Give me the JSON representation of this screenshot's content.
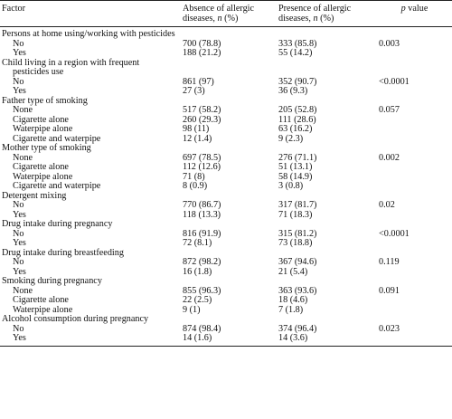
{
  "header": {
    "factor": "Factor",
    "absence_main": "Absence of allergic",
    "absence_sub_prefix": "diseases, ",
    "absence_sub_n": "n",
    "absence_sub_suffix": " (%)",
    "presence_main": "Presence of allergic",
    "presence_sub_prefix": "diseases, ",
    "presence_sub_n": "n",
    "presence_sub_suffix": " (%)",
    "p_italic": "p",
    "p_suffix": " value"
  },
  "groups": [
    {
      "factor": "Persons at home using/working with pesticides",
      "rows": [
        {
          "label": "No",
          "absence": "700 (78.8)",
          "presence": "333 (85.8)",
          "p": "0.003"
        },
        {
          "label": "Yes",
          "absence": "188 (21.2)",
          "presence": "55 (14.2)",
          "p": ""
        }
      ]
    },
    {
      "factor": "Child living in a region with frequent",
      "factor_cont": "pesticides use",
      "rows": [
        {
          "label": "No",
          "absence": "861 (97)",
          "presence": "352 (90.7)",
          "p": "<0.0001"
        },
        {
          "label": "Yes",
          "absence": "27 (3)",
          "presence": "36 (9.3)",
          "p": ""
        }
      ]
    },
    {
      "factor": "Father type of smoking",
      "rows": [
        {
          "label": "None",
          "absence": "517 (58.2)",
          "presence": "205 (52.8)",
          "p": "0.057"
        },
        {
          "label": "Cigarette alone",
          "absence": "260 (29.3)",
          "presence": "111 (28.6)",
          "p": ""
        },
        {
          "label": "Waterpipe alone",
          "absence": "98 (11)",
          "presence": "63 (16.2)",
          "p": ""
        },
        {
          "label": "Cigarette and waterpipe",
          "absence": "12 (1.4)",
          "presence": "9 (2.3)",
          "p": ""
        }
      ]
    },
    {
      "factor": "Mother type of smoking",
      "rows": [
        {
          "label": "None",
          "absence": "697 (78.5)",
          "presence": "276 (71.1)",
          "p": "0.002"
        },
        {
          "label": "Cigarette alone",
          "absence": "112 (12.6)",
          "presence": "51 (13.1)",
          "p": ""
        },
        {
          "label": "Waterpipe alone",
          "absence": "71 (8)",
          "presence": "58 (14.9)",
          "p": ""
        },
        {
          "label": "Cigarette and waterpipe",
          "absence": "8 (0.9)",
          "presence": "3 (0.8)",
          "p": ""
        }
      ]
    },
    {
      "factor": "Detergent mixing",
      "rows": [
        {
          "label": "No",
          "absence": "770 (86.7)",
          "presence": "317 (81.7)",
          "p": "0.02"
        },
        {
          "label": "Yes",
          "absence": "118 (13.3)",
          "presence": "71 (18.3)",
          "p": ""
        }
      ]
    },
    {
      "factor": "Drug intake during pregnancy",
      "rows": [
        {
          "label": "No",
          "absence": "816 (91.9)",
          "presence": "315 (81.2)",
          "p": "<0.0001"
        },
        {
          "label": "Yes",
          "absence": "72 (8.1)",
          "presence": "73 (18.8)",
          "p": ""
        }
      ]
    },
    {
      "factor": "Drug intake during breastfeeding",
      "rows": [
        {
          "label": "No",
          "absence": "872 (98.2)",
          "presence": "367 (94.6)",
          "p": "0.119"
        },
        {
          "label": "Yes",
          "absence": "16 (1.8)",
          "presence": "21 (5.4)",
          "p": ""
        }
      ]
    },
    {
      "factor": "Smoking during pregnancy",
      "rows": [
        {
          "label": "None",
          "absence": "855 (96.3)",
          "presence": "363 (93.6)",
          "p": "0.091"
        },
        {
          "label": "Cigarette alone",
          "absence": "22 (2.5)",
          "presence": "18 (4.6)",
          "p": ""
        },
        {
          "label": "Waterpipe alone",
          "absence": "9 (1)",
          "presence": "7 (1.8)",
          "p": ""
        }
      ]
    },
    {
      "factor": "Alcohol consumption during pregnancy",
      "rows": [
        {
          "label": "No",
          "absence": "874 (98.4)",
          "presence": "374 (96.4)",
          "p": "0.023"
        },
        {
          "label": "Yes",
          "absence": "14 (1.6)",
          "presence": "14 (3.6)",
          "p": ""
        }
      ]
    }
  ]
}
